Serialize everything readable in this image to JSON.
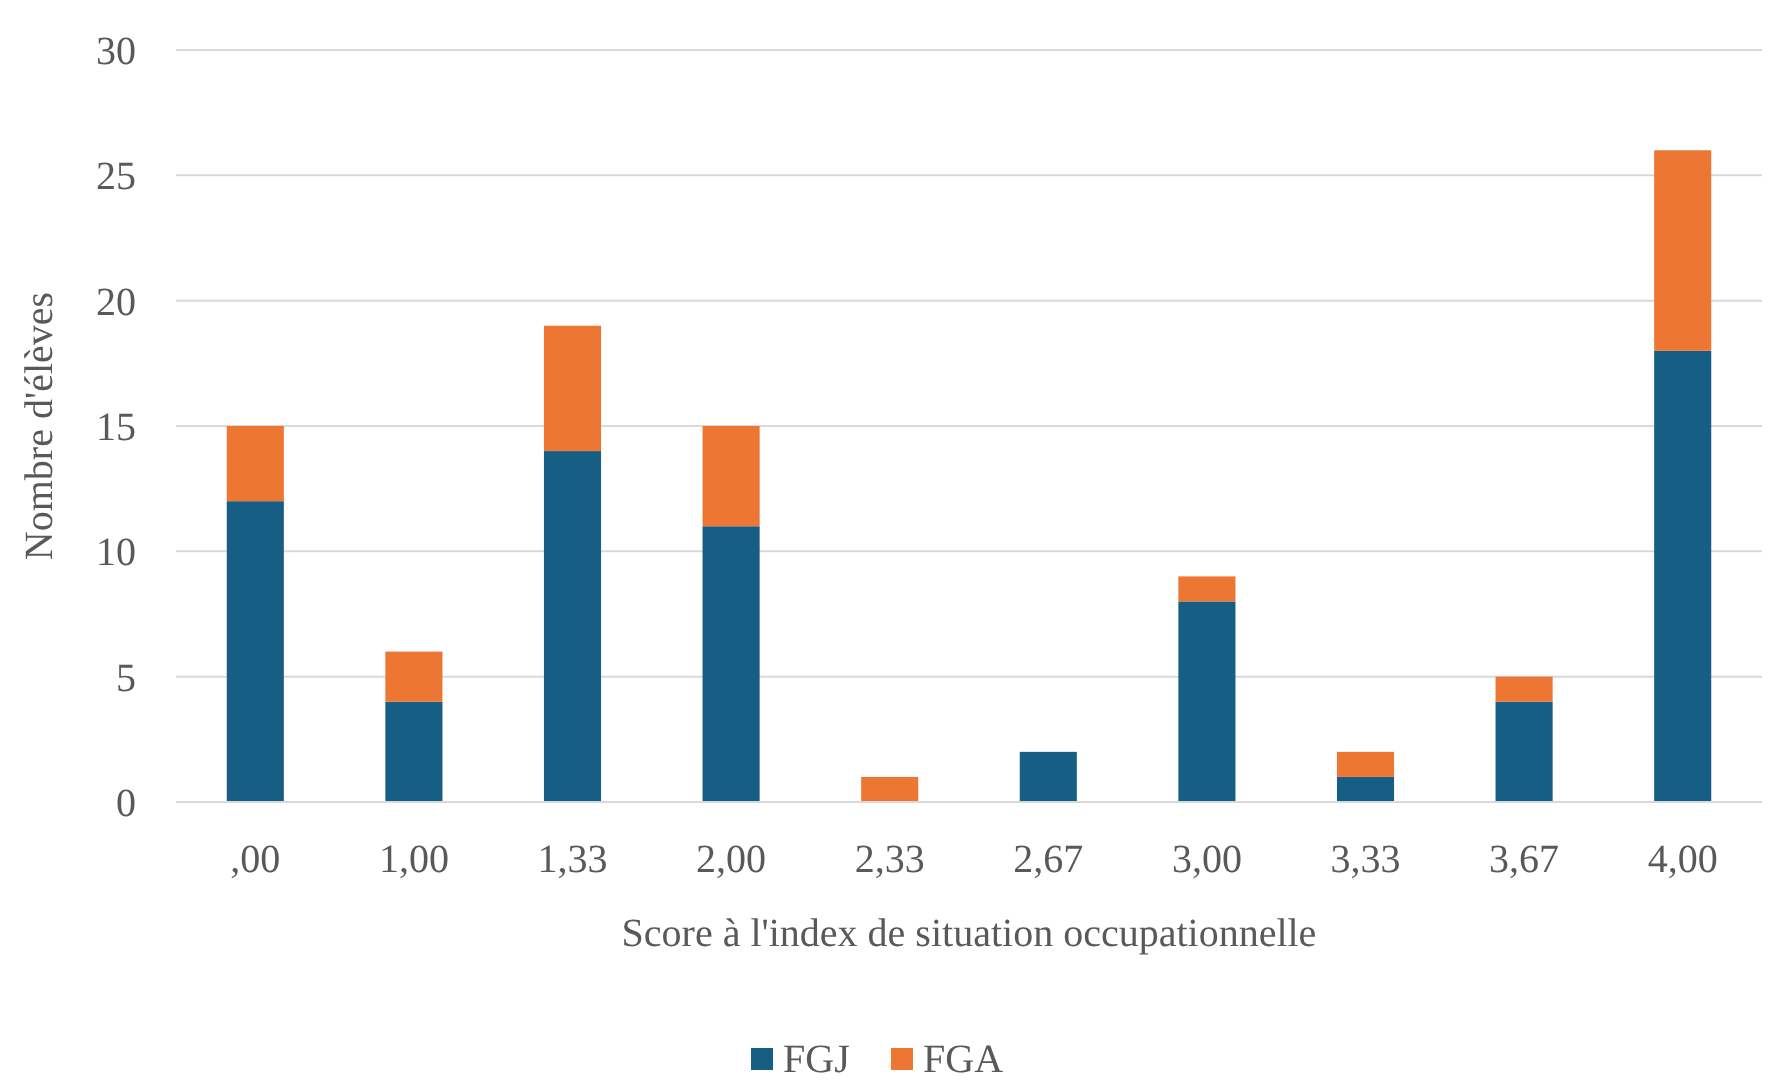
{
  "chart_data": {
    "type": "bar",
    "stacked": true,
    "xlabel": "Score à l'index de situation occupationnelle",
    "ylabel": "Nombre d'élèves",
    "categories": [
      ",00",
      "1,00",
      "1,33",
      "2,00",
      "2,33",
      "2,67",
      "3,00",
      "3,33",
      "3,67",
      "4,00"
    ],
    "series": [
      {
        "name": "FGJ",
        "color": "#175e84",
        "values": [
          12,
          4,
          14,
          11,
          0,
          2,
          8,
          1,
          4,
          18
        ]
      },
      {
        "name": "FGA",
        "color": "#ed7633",
        "values": [
          3,
          2,
          5,
          4,
          1,
          0,
          1,
          1,
          1,
          8
        ]
      }
    ],
    "ylim": [
      0,
      30
    ],
    "yticks": [
      0,
      5,
      10,
      15,
      20,
      25,
      30
    ],
    "grid": "y",
    "legend": "bottom"
  }
}
